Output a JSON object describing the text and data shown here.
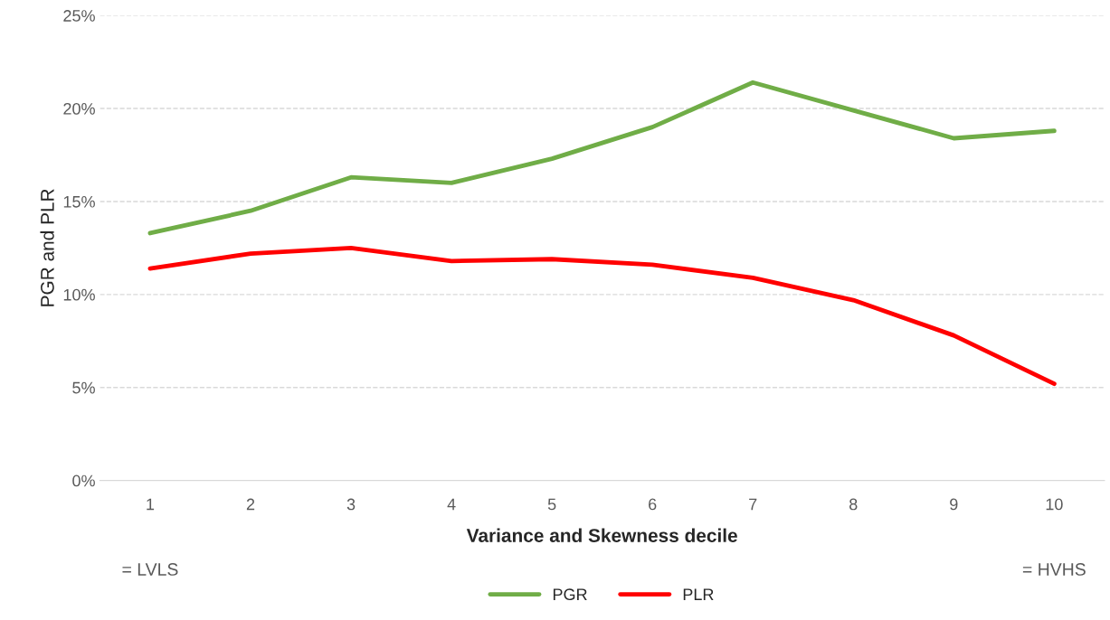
{
  "chart_data": {
    "type": "line",
    "xlabel": "Variance and Skewness decile",
    "ylabel": "PGR and PLR",
    "categories": [
      "1",
      "2",
      "3",
      "4",
      "5",
      "6",
      "7",
      "8",
      "9",
      "10"
    ],
    "series": [
      {
        "name": "PGR",
        "color": "#70ad47",
        "values": [
          13.3,
          14.5,
          16.3,
          16.0,
          17.3,
          19.0,
          21.4,
          19.9,
          18.4,
          18.8
        ]
      },
      {
        "name": "PLR",
        "color": "#ff0000",
        "values": [
          11.4,
          12.2,
          12.5,
          11.8,
          11.9,
          11.6,
          10.9,
          9.7,
          7.8,
          5.2
        ]
      }
    ],
    "ylim": [
      0,
      25
    ],
    "yticks": [
      {
        "value": 0,
        "label": "0%"
      },
      {
        "value": 5,
        "label": "5%"
      },
      {
        "value": 10,
        "label": "10%"
      },
      {
        "value": 15,
        "label": "15%"
      },
      {
        "value": 20,
        "label": "20%"
      },
      {
        "value": 25,
        "label": "25%"
      }
    ],
    "annotations": [
      "= LVLS",
      "= HVHS"
    ],
    "grid": "y",
    "legend": "bottom",
    "marker": "none",
    "line_style": "solid"
  }
}
